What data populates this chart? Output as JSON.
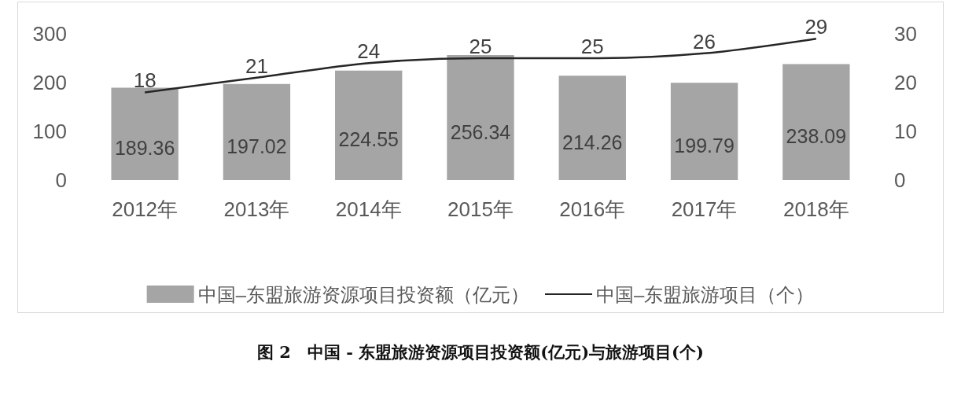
{
  "chart_data": {
    "type": "bar",
    "title": "图 2　中国 - 东盟旅游资源项目投资额(亿元)与旅游项目(个)",
    "categories": [
      "2012年",
      "2013年",
      "2014年",
      "2015年",
      "2016年",
      "2017年",
      "2018年"
    ],
    "series": [
      {
        "name": "中国–东盟旅游资源项目投资额（亿元）",
        "color": "#a5a5a5",
        "values": [
          189.36,
          197.02,
          224.55,
          256.34,
          214.26,
          199.79,
          238.09
        ]
      },
      {
        "name": "中国–东盟旅游项目（个）",
        "type": "line",
        "axis": "y2",
        "color": "#262626",
        "values": [
          18,
          21,
          24,
          25,
          25,
          26,
          29
        ]
      }
    ],
    "ylim": [
      0,
      300
    ],
    "yticks": [
      0,
      100,
      200,
      300
    ],
    "y2lim": [
      0,
      30
    ],
    "y2ticks": [
      0,
      10,
      20,
      30
    ],
    "data_labels": true,
    "grid": false,
    "legend": "bottom",
    "marker": "none",
    "line_style": "solid"
  }
}
